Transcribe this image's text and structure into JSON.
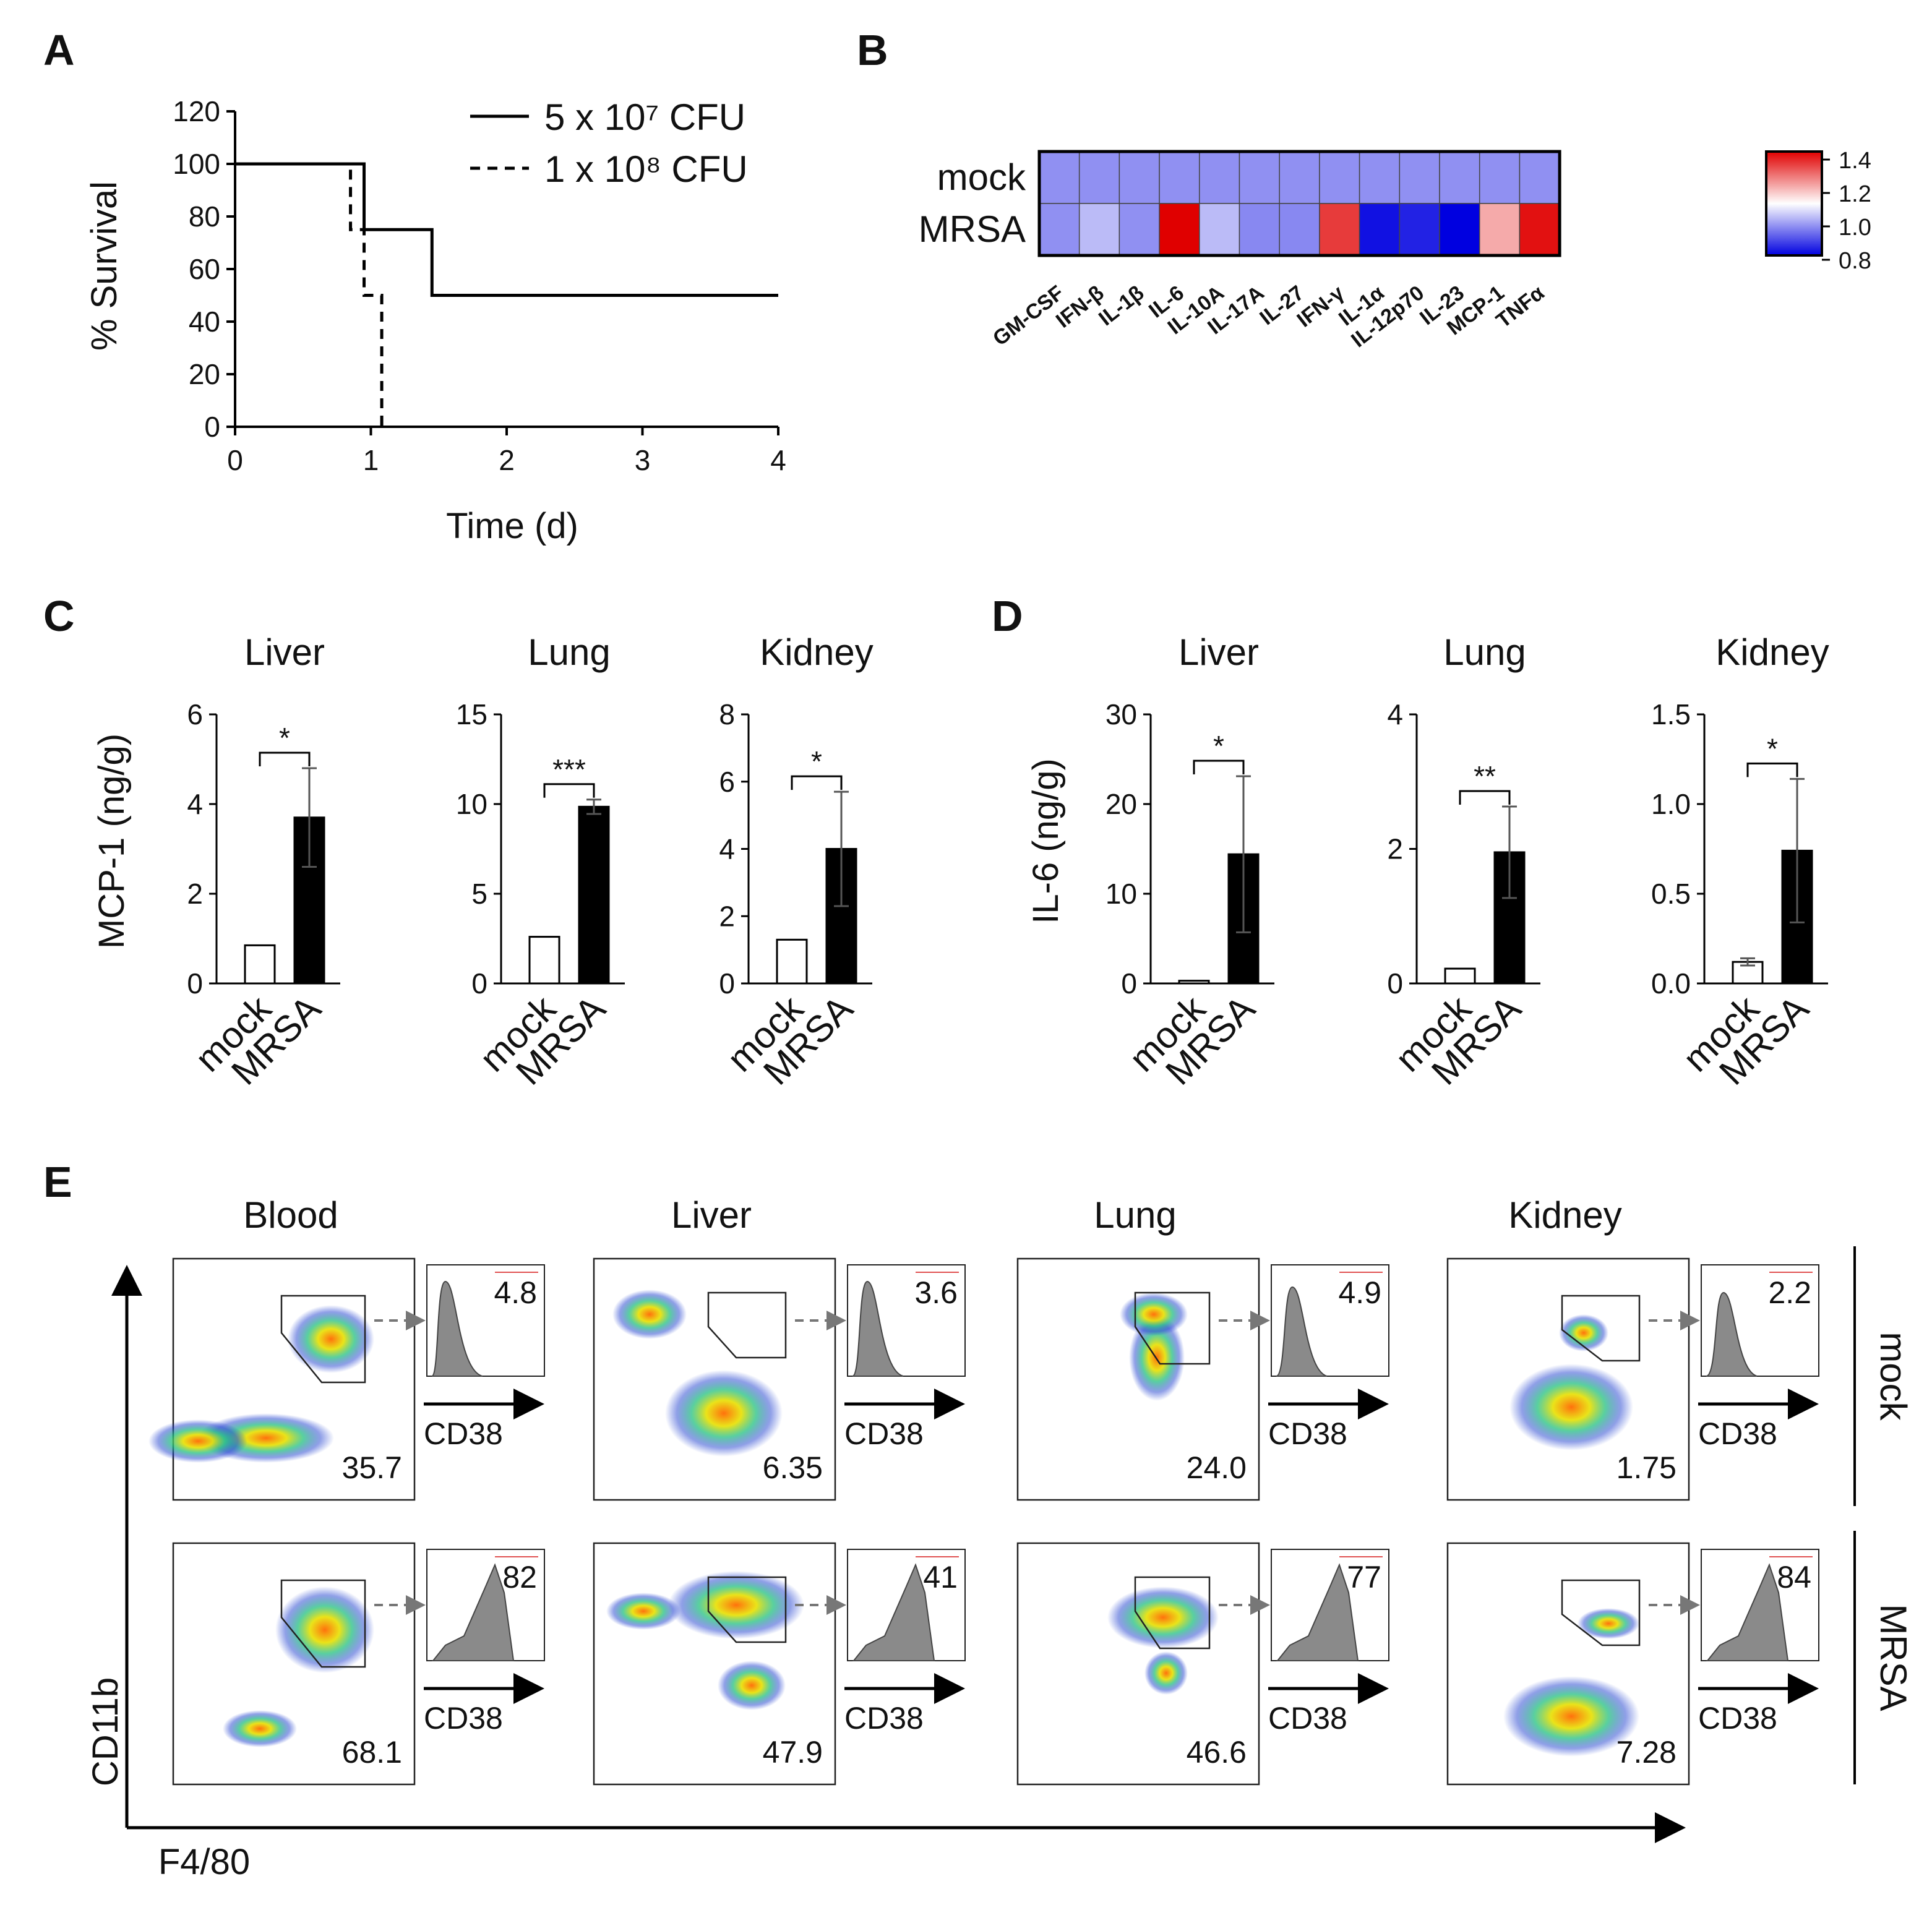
{
  "panels": {
    "A": {
      "letter": "A",
      "chart_data": {
        "type": "line",
        "title": "",
        "xlabel": "Time (d)",
        "ylabel": "% Survival",
        "xlim": [
          0,
          4
        ],
        "ylim": [
          0,
          120
        ],
        "xticks": [
          "0",
          "1",
          "2",
          "3",
          "4"
        ],
        "yticks": [
          "0",
          "20",
          "40",
          "60",
          "80",
          "100",
          "120"
        ],
        "legend_position": "top-right",
        "series": [
          {
            "name": "5 x 10⁷ CFU",
            "style": "solid",
            "x": [
              0,
              0.95,
              0.95,
              1.45,
              1.45,
              4
            ],
            "y": [
              100,
              100,
              75,
              75,
              50,
              50
            ]
          },
          {
            "name": "1 x 10⁸ CFU",
            "style": "dashed",
            "x": [
              0,
              0.85,
              0.85,
              0.95,
              0.95,
              1.08,
              1.08
            ],
            "y": [
              100,
              100,
              75,
              75,
              50,
              50,
              0
            ]
          }
        ]
      }
    },
    "B": {
      "letter": "B",
      "chart_data": {
        "type": "heatmap",
        "title": "",
        "rows": [
          "mock",
          "MRSA"
        ],
        "columns": [
          "GM-CSF",
          "IFN-β",
          "IL-1β",
          "IL-6",
          "IL-10A",
          "IL-17A",
          "IL-27",
          "IFN-γ",
          "IL-1α",
          "IL-12p70",
          "IL-23",
          "MCP-1",
          "TNFα"
        ],
        "values": [
          [
            0.97,
            0.97,
            0.97,
            0.97,
            0.97,
            0.97,
            0.97,
            0.97,
            0.97,
            0.97,
            0.97,
            0.97,
            0.97
          ],
          [
            0.97,
            1.02,
            0.97,
            1.4,
            1.02,
            0.96,
            0.96,
            1.33,
            0.82,
            0.84,
            0.8,
            1.2,
            1.38
          ]
        ],
        "colorbar_ticks": [
          "1.4",
          "1.2",
          "1.0",
          "0.8"
        ],
        "colorbar_range": [
          0.8,
          1.4
        ],
        "colors": {
          "low": "#0000e0",
          "mid": "#ffffff",
          "high": "#e00000"
        }
      }
    },
    "C": {
      "letter": "C",
      "ylabel": "MCP-1 (ng/g)",
      "chart_data": [
        {
          "type": "bar",
          "title": "Liver",
          "categories": [
            "mock",
            "MRSA"
          ],
          "values": [
            0.85,
            3.7
          ],
          "errors": [
            0,
            1.1
          ],
          "ylim": [
            0,
            6
          ],
          "yticks": [
            "0",
            "2",
            "4",
            "6"
          ],
          "significance": "*"
        },
        {
          "type": "bar",
          "title": "Lung",
          "categories": [
            "mock",
            "MRSA"
          ],
          "values": [
            2.6,
            9.85
          ],
          "errors": [
            0,
            0.4
          ],
          "ylim": [
            0,
            15
          ],
          "yticks": [
            "0",
            "5",
            "10",
            "15"
          ],
          "significance": "***"
        },
        {
          "type": "bar",
          "title": "Kidney",
          "categories": [
            "mock",
            "MRSA"
          ],
          "values": [
            1.3,
            4.0
          ],
          "errors": [
            0,
            1.7
          ],
          "ylim": [
            0,
            8
          ],
          "yticks": [
            "0",
            "2",
            "4",
            "6",
            "8"
          ],
          "significance": "*"
        }
      ]
    },
    "D": {
      "letter": "D",
      "ylabel": "IL-6 (ng/g)",
      "chart_data": [
        {
          "type": "bar",
          "title": "Liver",
          "categories": [
            "mock",
            "MRSA"
          ],
          "values": [
            0.3,
            14.4
          ],
          "errors": [
            0,
            8.7
          ],
          "ylim": [
            0,
            30
          ],
          "yticks": [
            "0",
            "10",
            "20",
            "30"
          ],
          "significance": "*"
        },
        {
          "type": "bar",
          "title": "Lung",
          "categories": [
            "mock",
            "MRSA"
          ],
          "values": [
            0.22,
            1.95
          ],
          "errors": [
            0,
            0.68
          ],
          "ylim": [
            0,
            4
          ],
          "yticks": [
            "0",
            "2",
            "4"
          ],
          "significance": "**"
        },
        {
          "type": "bar",
          "title": "Kidney",
          "categories": [
            "mock",
            "MRSA"
          ],
          "values": [
            0.12,
            0.74
          ],
          "errors": [
            0.02,
            0.4
          ],
          "ylim": [
            0,
            1.5
          ],
          "yticks": [
            "0.0",
            "0.5",
            "1.0",
            "1.5"
          ],
          "significance": "*"
        }
      ]
    },
    "E": {
      "letter": "E",
      "x_axis_label": "F4/80",
      "y_axis_label": "CD11b",
      "histogram_axis_label": "CD38",
      "conditions": [
        "mock",
        "MRSA"
      ],
      "tissues": [
        {
          "name": "Blood",
          "mock": {
            "gate_pct": "35.7",
            "cd38_pct": "4.8"
          },
          "mrsa": {
            "gate_pct": "68.1",
            "cd38_pct": "82"
          }
        },
        {
          "name": "Liver",
          "mock": {
            "gate_pct": "6.35",
            "cd38_pct": "3.6"
          },
          "mrsa": {
            "gate_pct": "47.9",
            "cd38_pct": "41"
          }
        },
        {
          "name": "Lung",
          "mock": {
            "gate_pct": "24.0",
            "cd38_pct": "4.9"
          },
          "mrsa": {
            "gate_pct": "46.6",
            "cd38_pct": "77"
          }
        },
        {
          "name": "Kidney",
          "mock": {
            "gate_pct": "1.75",
            "cd38_pct": "2.2"
          },
          "mrsa": {
            "gate_pct": "7.28",
            "cd38_pct": "84"
          }
        }
      ]
    }
  }
}
